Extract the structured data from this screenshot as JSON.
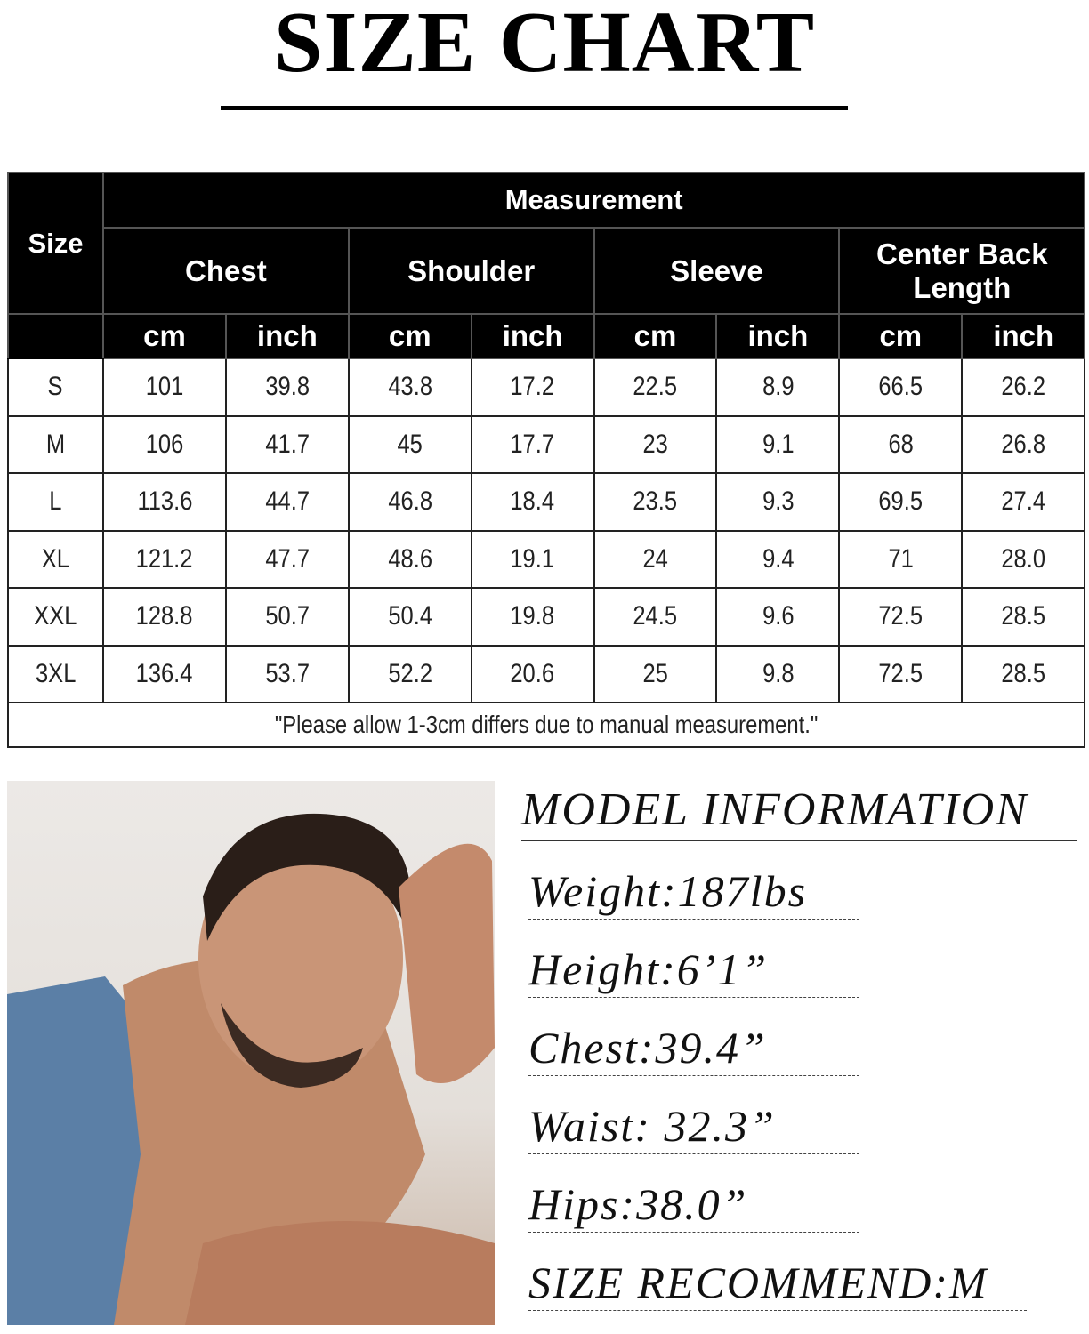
{
  "title": "SIZE CHART",
  "table": {
    "size_label": "Size",
    "group_label": "Measurement",
    "columns": [
      "Chest",
      "Shoulder",
      "Sleeve",
      "Center Back Length"
    ],
    "units": [
      "cm",
      "inch"
    ],
    "rows": [
      [
        "S",
        "101",
        "39.8",
        "43.8",
        "17.2",
        "22.5",
        "8.9",
        "66.5",
        "26.2"
      ],
      [
        "M",
        "106",
        "41.7",
        "45",
        "17.7",
        "23",
        "9.1",
        "68",
        "26.8"
      ],
      [
        "L",
        "113.6",
        "44.7",
        "46.8",
        "18.4",
        "23.5",
        "9.3",
        "69.5",
        "27.4"
      ],
      [
        "XL",
        "121.2",
        "47.7",
        "48.6",
        "19.1",
        "24",
        "9.4",
        "71",
        "28.0"
      ],
      [
        "XXL",
        "128.8",
        "50.7",
        "50.4",
        "19.8",
        "24.5",
        "9.6",
        "72.5",
        "28.5"
      ],
      [
        "3XL",
        "136.4",
        "53.7",
        "52.2",
        "20.6",
        "25",
        "9.8",
        "72.5",
        "28.5"
      ]
    ],
    "note": "\"Please allow 1-3cm differs due to manual measurement.\""
  },
  "model": {
    "heading": "MODEL INFORMATION",
    "lines": [
      "Weight:187lbs",
      "Height:6’1”",
      "Chest:39.4”",
      "Waist: 32.3”",
      "Hips:38.0”",
      "SIZE RECOMMEND:M"
    ]
  }
}
